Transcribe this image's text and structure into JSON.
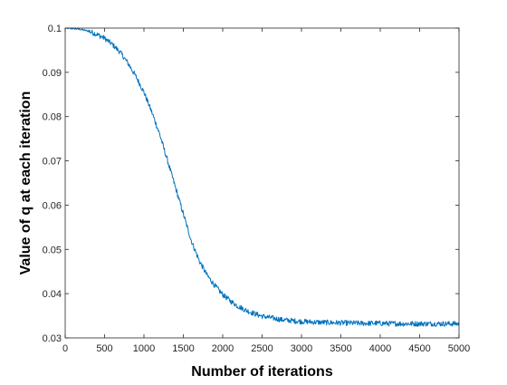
{
  "colors": {
    "series": "#0072BD",
    "axes": "#262626",
    "background": "#ffffff"
  },
  "chart_data": {
    "type": "line",
    "title": "",
    "xlabel": "Number of iterations",
    "ylabel": "Value of q at each iteration",
    "xlim": [
      0,
      5000
    ],
    "ylim": [
      0.03,
      0.1
    ],
    "xticks": [
      0,
      500,
      1000,
      1500,
      2000,
      2500,
      3000,
      3500,
      4000,
      4500,
      5000
    ],
    "xtick_labels": [
      "0",
      "500",
      "1000",
      "1500",
      "2000",
      "2500",
      "3000",
      "3500",
      "4000",
      "4500",
      "5000"
    ],
    "yticks": [
      0.03,
      0.04,
      0.05,
      0.06,
      0.07,
      0.08,
      0.09,
      0.1
    ],
    "ytick_labels": [
      "0.03",
      "0.04",
      "0.05",
      "0.06",
      "0.07",
      "0.08",
      "0.09",
      "0.1"
    ],
    "grid": false,
    "legend": "none",
    "series": [
      {
        "x": [
          0,
          100,
          200,
          300,
          400,
          500,
          600,
          700,
          800,
          900,
          1000,
          1100,
          1200,
          1300,
          1400,
          1500,
          1600,
          1700,
          1800,
          1900,
          2000,
          2100,
          2200,
          2300,
          2400,
          2500,
          2750,
          3000,
          3250,
          3500,
          3750,
          4000,
          4250,
          4500,
          4750,
          5000
        ],
        "y": [
          0.1,
          0.0999,
          0.0997,
          0.0993,
          0.0986,
          0.0977,
          0.0963,
          0.0945,
          0.092,
          0.089,
          0.0855,
          0.081,
          0.076,
          0.07,
          0.064,
          0.058,
          0.052,
          0.0475,
          0.0442,
          0.0418,
          0.0398,
          0.0383,
          0.0371,
          0.0362,
          0.0355,
          0.0349,
          0.0341,
          0.0337,
          0.0335,
          0.0334,
          0.0333,
          0.0333,
          0.0332,
          0.0332,
          0.0332,
          0.0332
        ]
      }
    ]
  }
}
